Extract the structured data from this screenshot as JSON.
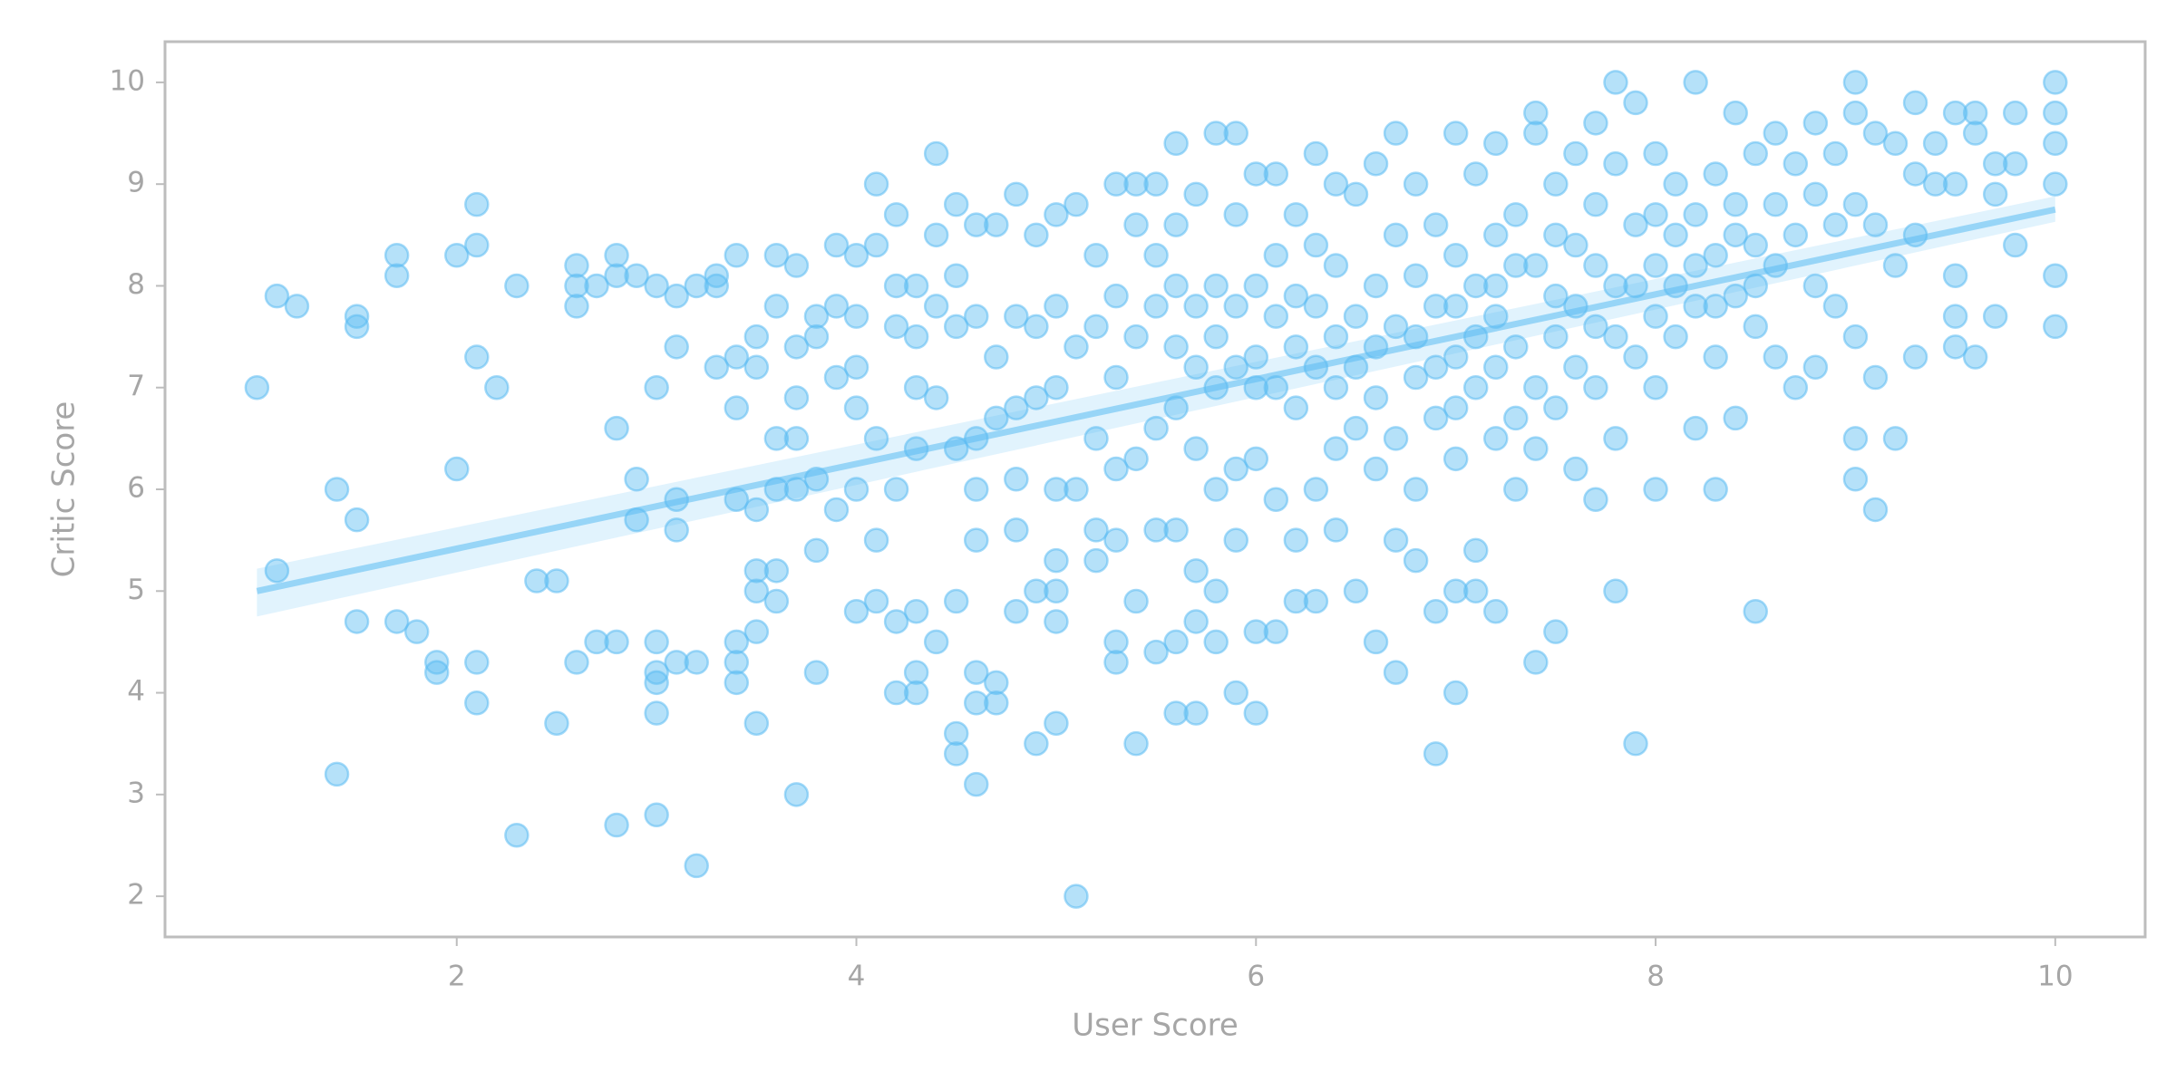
{
  "chart_data": {
    "type": "scatter",
    "xlabel": "User Score",
    "ylabel": "Critic Score",
    "color": "#5bbcf2",
    "xlim": [
      0.54,
      10.45
    ],
    "ylim": [
      1.6,
      10.4
    ],
    "xticks": [
      2,
      4,
      6,
      8,
      10
    ],
    "yticks": [
      2,
      3,
      4,
      5,
      6,
      7,
      8,
      9,
      10
    ],
    "grid": false,
    "x": [
      1.0,
      1.1,
      1.1,
      1.2,
      1.4,
      1.4,
      1.5,
      1.5,
      1.5,
      1.5,
      1.7,
      1.7,
      1.7,
      1.8,
      1.9,
      1.9,
      2.0,
      2.0,
      2.1,
      2.1,
      2.1,
      2.1,
      2.1,
      2.2,
      2.3,
      2.3,
      2.4,
      2.5,
      2.5,
      2.6,
      2.6,
      2.6,
      2.6,
      2.7,
      2.7,
      2.8,
      2.8,
      2.8,
      2.8,
      2.8,
      2.9,
      2.9,
      2.9,
      3.0,
      3.0,
      3.0,
      3.0,
      3.0,
      3.0,
      3.0,
      3.1,
      3.1,
      3.1,
      3.1,
      3.1,
      3.2,
      3.2,
      3.2,
      3.3,
      3.3,
      3.3,
      3.4,
      3.4,
      3.4,
      3.4,
      3.4,
      3.4,
      3.4,
      3.5,
      3.5,
      3.5,
      3.5,
      3.5,
      3.5,
      3.5,
      3.6,
      3.6,
      3.6,
      3.6,
      3.6,
      3.6,
      3.7,
      3.7,
      3.7,
      3.7,
      3.7,
      3.7,
      3.8,
      3.8,
      3.8,
      3.8,
      3.8,
      3.9,
      3.9,
      3.9,
      3.9,
      4.0,
      4.0,
      4.0,
      4.0,
      4.0,
      4.0,
      4.1,
      4.1,
      4.1,
      4.1,
      4.1,
      4.2,
      4.2,
      4.2,
      4.2,
      4.2,
      4.2,
      4.3,
      4.3,
      4.3,
      4.3,
      4.3,
      4.3,
      4.3,
      4.4,
      4.4,
      4.4,
      4.4,
      4.4,
      4.5,
      4.5,
      4.5,
      4.5,
      4.5,
      4.5,
      4.5,
      4.6,
      4.6,
      4.6,
      4.6,
      4.6,
      4.6,
      4.6,
      4.6,
      4.7,
      4.7,
      4.7,
      4.7,
      4.7,
      4.8,
      4.8,
      4.8,
      4.8,
      4.8,
      4.8,
      4.9,
      4.9,
      4.9,
      4.9,
      4.9,
      5.0,
      5.0,
      5.0,
      5.0,
      5.0,
      5.0,
      5.0,
      5.0,
      5.1,
      5.1,
      5.1,
      5.1,
      5.2,
      5.2,
      5.2,
      5.2,
      5.2,
      5.3,
      5.3,
      5.3,
      5.3,
      5.3,
      5.3,
      5.3,
      5.4,
      5.4,
      5.4,
      5.4,
      5.4,
      5.4,
      5.5,
      5.5,
      5.5,
      5.5,
      5.5,
      5.5,
      5.6,
      5.6,
      5.6,
      5.6,
      5.6,
      5.6,
      5.6,
      5.6,
      5.7,
      5.7,
      5.7,
      5.7,
      5.7,
      5.7,
      5.7,
      5.8,
      5.8,
      5.8,
      5.8,
      5.8,
      5.8,
      5.8,
      5.9,
      5.9,
      5.9,
      5.9,
      5.9,
      5.9,
      5.9,
      6.0,
      6.0,
      6.0,
      6.0,
      6.0,
      6.0,
      6.0,
      6.1,
      6.1,
      6.1,
      6.1,
      6.1,
      6.1,
      6.2,
      6.2,
      6.2,
      6.2,
      6.2,
      6.2,
      6.3,
      6.3,
      6.3,
      6.3,
      6.3,
      6.3,
      6.4,
      6.4,
      6.4,
      6.4,
      6.4,
      6.4,
      6.5,
      6.5,
      6.5,
      6.5,
      6.5,
      6.6,
      6.6,
      6.6,
      6.6,
      6.6,
      6.6,
      6.7,
      6.7,
      6.7,
      6.7,
      6.7,
      6.7,
      6.8,
      6.8,
      6.8,
      6.8,
      6.8,
      6.8,
      6.9,
      6.9,
      6.9,
      6.9,
      6.9,
      6.9,
      7.0,
      7.0,
      7.0,
      7.0,
      7.0,
      7.0,
      7.0,
      7.0,
      7.1,
      7.1,
      7.1,
      7.1,
      7.1,
      7.1,
      7.2,
      7.2,
      7.2,
      7.2,
      7.2,
      7.2,
      7.2,
      7.3,
      7.3,
      7.3,
      7.3,
      7.3,
      7.4,
      7.4,
      7.4,
      7.4,
      7.4,
      7.4,
      7.5,
      7.5,
      7.5,
      7.5,
      7.5,
      7.5,
      7.6,
      7.6,
      7.6,
      7.6,
      7.6,
      7.7,
      7.7,
      7.7,
      7.7,
      7.7,
      7.7,
      7.8,
      7.8,
      7.8,
      7.8,
      7.8,
      7.8,
      7.9,
      7.9,
      7.9,
      7.9,
      7.9,
      8.0,
      8.0,
      8.0,
      8.0,
      8.0,
      8.0,
      8.1,
      8.1,
      8.1,
      8.1,
      8.2,
      8.2,
      8.2,
      8.2,
      8.2,
      8.3,
      8.3,
      8.3,
      8.3,
      8.3,
      8.4,
      8.4,
      8.4,
      8.4,
      8.4,
      8.5,
      8.5,
      8.5,
      8.5,
      8.5,
      8.6,
      8.6,
      8.6,
      8.6,
      8.7,
      8.7,
      8.7,
      8.8,
      8.8,
      8.8,
      8.8,
      8.9,
      8.9,
      8.9,
      9.0,
      9.0,
      9.0,
      9.0,
      9.0,
      9.0,
      9.1,
      9.1,
      9.1,
      9.1,
      9.2,
      9.2,
      9.2,
      9.3,
      9.3,
      9.3,
      9.3,
      9.4,
      9.4,
      9.5,
      9.5,
      9.5,
      9.5,
      9.5,
      9.6,
      9.6,
      9.6,
      9.7,
      9.7,
      9.7,
      9.8,
      9.8,
      9.8,
      10.0,
      10.0,
      10.0,
      10.0,
      10.0,
      10.0
    ],
    "values": [
      7.0,
      7.9,
      5.2,
      7.8,
      6.0,
      3.2,
      7.7,
      7.6,
      5.7,
      4.7,
      8.3,
      8.1,
      4.7,
      4.6,
      4.3,
      4.2,
      8.3,
      6.2,
      8.8,
      8.4,
      7.3,
      4.3,
      3.9,
      7.0,
      8.0,
      2.6,
      5.1,
      5.1,
      3.7,
      8.2,
      8.0,
      7.8,
      4.3,
      8.0,
      4.5,
      8.3,
      8.1,
      6.6,
      4.5,
      2.7,
      8.1,
      6.1,
      5.7,
      8.0,
      7.0,
      4.5,
      4.2,
      4.1,
      3.8,
      2.8,
      7.9,
      7.4,
      5.9,
      5.6,
      4.3,
      8.0,
      4.3,
      2.3,
      8.1,
      8.0,
      7.2,
      8.3,
      7.3,
      6.8,
      5.9,
      4.5,
      4.3,
      4.1,
      7.5,
      7.2,
      5.8,
      5.2,
      5.0,
      4.6,
      3.7,
      8.3,
      7.8,
      6.5,
      6.0,
      5.2,
      4.9,
      8.2,
      7.4,
      6.9,
      6.5,
      6.0,
      3.0,
      7.7,
      7.5,
      6.1,
      5.4,
      4.2,
      8.4,
      7.8,
      7.1,
      5.8,
      8.3,
      7.7,
      7.2,
      6.8,
      6.0,
      4.8,
      9.0,
      8.4,
      6.5,
      5.5,
      4.9,
      8.7,
      8.0,
      7.6,
      6.0,
      4.7,
      4.0,
      8.0,
      7.5,
      7.0,
      6.4,
      4.8,
      4.2,
      4.0,
      9.3,
      8.5,
      7.8,
      6.9,
      4.5,
      8.8,
      8.1,
      7.6,
      6.4,
      4.9,
      3.6,
      3.4,
      8.6,
      7.7,
      6.5,
      6.0,
      5.5,
      4.2,
      3.9,
      3.1,
      8.6,
      7.3,
      6.7,
      4.1,
      3.9,
      8.9,
      7.7,
      6.8,
      6.1,
      5.6,
      4.8,
      8.5,
      7.6,
      6.9,
      5.0,
      3.5,
      8.7,
      7.8,
      7.0,
      6.0,
      5.3,
      5.0,
      4.7,
      3.7,
      8.8,
      7.4,
      6.0,
      2.0,
      8.3,
      7.6,
      6.5,
      5.6,
      5.3,
      9.0,
      7.9,
      7.1,
      6.2,
      5.5,
      4.5,
      4.3,
      9.0,
      8.6,
      7.5,
      6.3,
      4.9,
      3.5,
      9.0,
      8.3,
      7.8,
      6.6,
      5.6,
      4.4,
      9.4,
      8.6,
      8.0,
      7.4,
      6.8,
      5.6,
      4.5,
      3.8,
      8.9,
      7.8,
      7.2,
      6.4,
      5.2,
      4.7,
      3.8,
      9.5,
      8.0,
      7.5,
      7.0,
      6.0,
      5.0,
      4.5,
      9.5,
      8.7,
      7.8,
      7.2,
      6.2,
      5.5,
      4.0,
      9.1,
      8.0,
      7.3,
      7.0,
      6.3,
      4.6,
      3.8,
      9.1,
      8.3,
      7.7,
      7.0,
      5.9,
      4.6,
      8.7,
      7.9,
      7.4,
      6.8,
      5.5,
      4.9,
      9.3,
      8.4,
      7.8,
      7.2,
      6.0,
      4.9,
      9.0,
      8.2,
      7.5,
      7.0,
      6.4,
      5.6,
      8.9,
      7.7,
      7.2,
      6.6,
      5.0,
      9.2,
      8.0,
      7.4,
      6.9,
      6.2,
      4.5,
      9.5,
      8.5,
      7.6,
      6.5,
      5.5,
      4.2,
      9.0,
      8.1,
      7.5,
      7.1,
      6.0,
      5.3,
      8.6,
      7.8,
      7.2,
      6.7,
      4.8,
      3.4,
      9.5,
      8.3,
      7.8,
      7.3,
      6.8,
      6.3,
      5.0,
      4.0,
      9.1,
      8.0,
      7.5,
      7.0,
      5.4,
      5.0,
      9.4,
      8.5,
      8.0,
      7.7,
      7.2,
      6.5,
      4.8,
      8.7,
      8.2,
      7.4,
      6.7,
      6.0,
      9.7,
      9.5,
      8.2,
      7.0,
      6.4,
      4.3,
      9.0,
      8.5,
      7.9,
      7.5,
      6.8,
      4.6,
      9.3,
      8.4,
      7.8,
      7.2,
      6.2,
      9.6,
      8.8,
      8.2,
      7.6,
      7.0,
      5.9,
      10.0,
      9.2,
      8.0,
      7.5,
      6.5,
      5.0,
      9.8,
      8.6,
      8.0,
      7.3,
      3.5,
      9.3,
      8.7,
      8.2,
      7.7,
      7.0,
      6.0,
      9.0,
      8.5,
      8.0,
      7.5,
      10.0,
      8.7,
      8.2,
      7.8,
      6.6,
      9.1,
      8.3,
      7.8,
      7.3,
      6.0,
      9.7,
      8.8,
      8.5,
      7.9,
      6.7,
      9.3,
      8.4,
      8.0,
      7.6,
      4.8,
      9.5,
      8.8,
      8.2,
      7.3,
      9.2,
      8.5,
      7.0,
      9.6,
      8.9,
      8.0,
      7.2,
      9.3,
      8.6,
      7.8,
      10.0,
      9.7,
      8.8,
      7.5,
      6.5,
      6.1,
      9.5,
      8.6,
      7.1,
      5.8,
      9.4,
      8.2,
      6.5,
      9.8,
      9.1,
      8.5,
      7.3,
      9.4,
      9.0,
      9.7,
      9.0,
      8.1,
      7.7,
      7.4,
      9.7,
      9.5,
      7.3,
      9.2,
      8.9,
      7.7,
      9.7,
      9.2,
      8.4,
      10.0,
      9.7,
      9.4,
      9.0,
      8.1,
      7.6
    ],
    "regression": {
      "x": [
        1.0,
        10.0
      ],
      "y": [
        5.0,
        8.75
      ],
      "lower": [
        4.75,
        8.63
      ],
      "upper": [
        5.22,
        8.88
      ]
    }
  }
}
